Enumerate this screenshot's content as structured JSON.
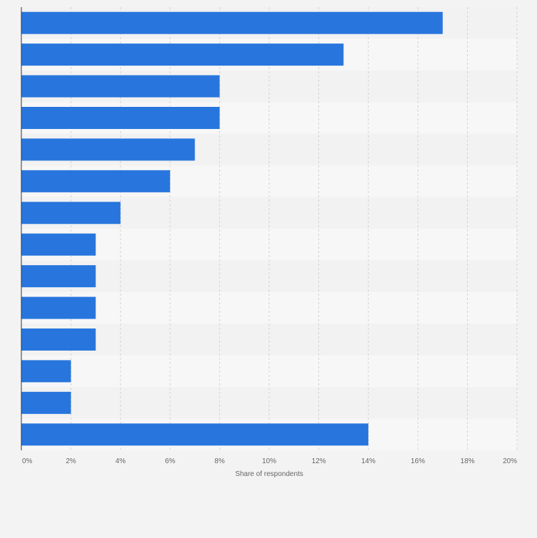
{
  "chart_data": {
    "type": "bar",
    "orientation": "horizontal",
    "categories": [
      "",
      "",
      "",
      "",
      "",
      "",
      "",
      "",
      "",
      "",
      "",
      "",
      "",
      ""
    ],
    "values": [
      17,
      13,
      8,
      8,
      7,
      6,
      4,
      3,
      3,
      3,
      3,
      2,
      2,
      14
    ],
    "xlabel": "Share of respondents",
    "ylabel": "",
    "xlim": [
      0,
      20
    ],
    "x_ticks": [
      "0%",
      "2%",
      "4%",
      "6%",
      "8%",
      "10%",
      "12%",
      "14%",
      "16%",
      "18%",
      "20%"
    ],
    "grid": true,
    "legend": "none",
    "colors": {
      "bar": "#2876dd",
      "band_light": "#f7f7f7",
      "band_dark": "#f2f2f2",
      "grid": "#d3d3d3",
      "axis": "#333333",
      "tick_label": "#666666"
    }
  }
}
